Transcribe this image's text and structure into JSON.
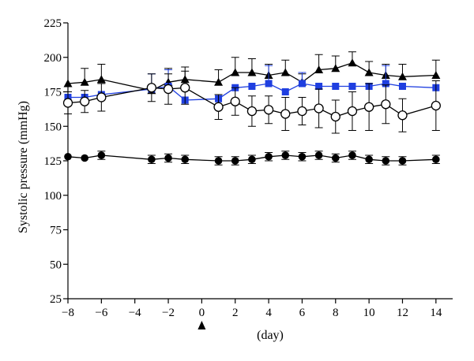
{
  "chart_data": {
    "type": "line",
    "title": "",
    "xlabel": "(day)",
    "ylabel": "Systolic pressure (mmHg)",
    "xlim": [
      -8,
      15
    ],
    "ylim": [
      25,
      225
    ],
    "xticks": [
      -8,
      -6,
      -4,
      -2,
      0,
      2,
      4,
      6,
      8,
      10,
      12,
      14
    ],
    "yticks": [
      25,
      50,
      75,
      100,
      125,
      150,
      175,
      200,
      225
    ],
    "grid": false,
    "annotation": {
      "type": "arrow-marker",
      "x": 0
    },
    "series": [
      {
        "marker": "triangle-filled",
        "color": "#000000",
        "x": [
          -8,
          -7,
          -6,
          -3,
          -2,
          -1,
          1,
          2,
          3,
          4,
          5,
          6,
          7,
          8,
          9,
          10,
          11,
          12,
          14
        ],
        "y": [
          181,
          182,
          184,
          176,
          182,
          184,
          182,
          189,
          189,
          187,
          189,
          182,
          191,
          192,
          196,
          189,
          187,
          186,
          187
        ],
        "err": [
          0,
          10,
          11,
          0,
          10,
          9,
          9,
          11,
          10,
          8,
          9,
          6,
          11,
          9,
          8,
          8,
          8,
          9,
          11
        ]
      },
      {
        "marker": "square-filled",
        "color": "#1f3fe0",
        "x": [
          -8,
          -7,
          -6,
          -3,
          -2,
          -1,
          1,
          2,
          3,
          4,
          5,
          6,
          7,
          8,
          9,
          10,
          11,
          12,
          14
        ],
        "y": [
          171,
          171,
          173,
          177,
          179,
          169,
          170,
          178,
          179,
          181,
          175,
          181,
          179,
          179,
          179,
          179,
          181,
          179,
          178
        ],
        "err": [
          0,
          0,
          0,
          11,
          12,
          0,
          0,
          0,
          0,
          13,
          0,
          8,
          0,
          0,
          0,
          0,
          13,
          0,
          0
        ]
      },
      {
        "marker": "circle-open",
        "color": "#000000",
        "x": [
          -8,
          -7,
          -6,
          -3,
          -2,
          -1,
          1,
          2,
          3,
          4,
          5,
          6,
          7,
          8,
          9,
          10,
          11,
          12,
          14
        ],
        "y": [
          167,
          168,
          171,
          178,
          177,
          178,
          164,
          168,
          161,
          162,
          159,
          161,
          163,
          157,
          161,
          164,
          166,
          158,
          165
        ],
        "err": [
          8,
          8,
          10,
          10,
          11,
          12,
          9,
          10,
          11,
          10,
          12,
          10,
          14,
          12,
          14,
          17,
          14,
          12,
          18
        ]
      },
      {
        "marker": "circle-filled",
        "color": "#000000",
        "x": [
          -8,
          -7,
          -6,
          -3,
          -2,
          -1,
          1,
          2,
          3,
          4,
          5,
          6,
          7,
          8,
          9,
          10,
          11,
          12,
          14
        ],
        "y": [
          128,
          127,
          129,
          126,
          127,
          126,
          125,
          125,
          126,
          128,
          129,
          128,
          129,
          127,
          129,
          126,
          125,
          125,
          126
        ],
        "err": [
          0,
          0,
          3,
          3,
          3,
          3,
          3,
          3,
          3,
          3,
          3,
          3,
          3,
          3,
          3,
          3,
          3,
          3,
          3
        ]
      }
    ]
  }
}
